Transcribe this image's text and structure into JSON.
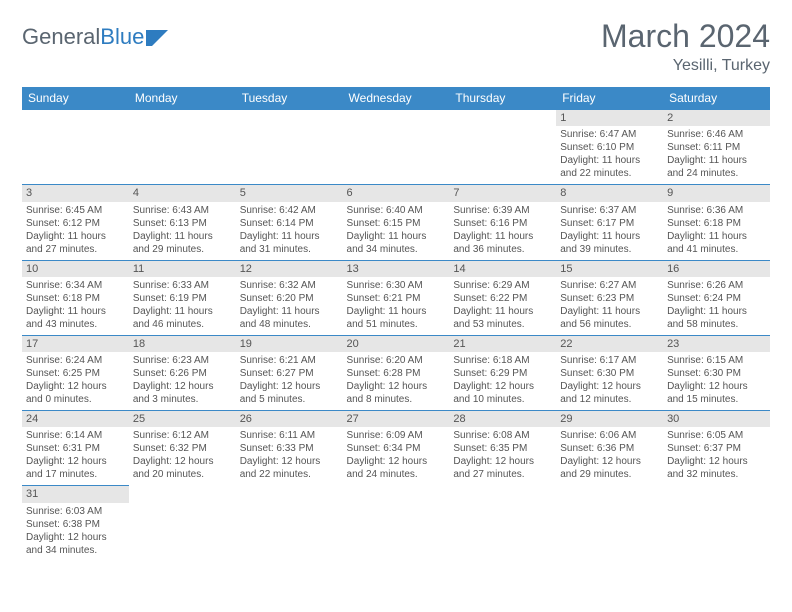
{
  "logo": {
    "text1": "General",
    "text2": "Blue"
  },
  "title": "March 2024",
  "location": "Yesilli, Turkey",
  "weekdays": [
    "Sunday",
    "Monday",
    "Tuesday",
    "Wednesday",
    "Thursday",
    "Friday",
    "Saturday"
  ],
  "colors": {
    "header_bg": "#3b89c7",
    "header_text": "#ffffff",
    "daynum_bg": "#e6e6e6",
    "border": "#3b89c7",
    "title_color": "#5a6570",
    "body_text": "#555555"
  },
  "grid": [
    [
      {
        "day": "",
        "lines": []
      },
      {
        "day": "",
        "lines": []
      },
      {
        "day": "",
        "lines": []
      },
      {
        "day": "",
        "lines": []
      },
      {
        "day": "",
        "lines": []
      },
      {
        "day": "1",
        "lines": [
          "Sunrise: 6:47 AM",
          "Sunset: 6:10 PM",
          "Daylight: 11 hours",
          "and 22 minutes."
        ]
      },
      {
        "day": "2",
        "lines": [
          "Sunrise: 6:46 AM",
          "Sunset: 6:11 PM",
          "Daylight: 11 hours",
          "and 24 minutes."
        ]
      }
    ],
    [
      {
        "day": "3",
        "lines": [
          "Sunrise: 6:45 AM",
          "Sunset: 6:12 PM",
          "Daylight: 11 hours",
          "and 27 minutes."
        ]
      },
      {
        "day": "4",
        "lines": [
          "Sunrise: 6:43 AM",
          "Sunset: 6:13 PM",
          "Daylight: 11 hours",
          "and 29 minutes."
        ]
      },
      {
        "day": "5",
        "lines": [
          "Sunrise: 6:42 AM",
          "Sunset: 6:14 PM",
          "Daylight: 11 hours",
          "and 31 minutes."
        ]
      },
      {
        "day": "6",
        "lines": [
          "Sunrise: 6:40 AM",
          "Sunset: 6:15 PM",
          "Daylight: 11 hours",
          "and 34 minutes."
        ]
      },
      {
        "day": "7",
        "lines": [
          "Sunrise: 6:39 AM",
          "Sunset: 6:16 PM",
          "Daylight: 11 hours",
          "and 36 minutes."
        ]
      },
      {
        "day": "8",
        "lines": [
          "Sunrise: 6:37 AM",
          "Sunset: 6:17 PM",
          "Daylight: 11 hours",
          "and 39 minutes."
        ]
      },
      {
        "day": "9",
        "lines": [
          "Sunrise: 6:36 AM",
          "Sunset: 6:18 PM",
          "Daylight: 11 hours",
          "and 41 minutes."
        ]
      }
    ],
    [
      {
        "day": "10",
        "lines": [
          "Sunrise: 6:34 AM",
          "Sunset: 6:18 PM",
          "Daylight: 11 hours",
          "and 43 minutes."
        ]
      },
      {
        "day": "11",
        "lines": [
          "Sunrise: 6:33 AM",
          "Sunset: 6:19 PM",
          "Daylight: 11 hours",
          "and 46 minutes."
        ]
      },
      {
        "day": "12",
        "lines": [
          "Sunrise: 6:32 AM",
          "Sunset: 6:20 PM",
          "Daylight: 11 hours",
          "and 48 minutes."
        ]
      },
      {
        "day": "13",
        "lines": [
          "Sunrise: 6:30 AM",
          "Sunset: 6:21 PM",
          "Daylight: 11 hours",
          "and 51 minutes."
        ]
      },
      {
        "day": "14",
        "lines": [
          "Sunrise: 6:29 AM",
          "Sunset: 6:22 PM",
          "Daylight: 11 hours",
          "and 53 minutes."
        ]
      },
      {
        "day": "15",
        "lines": [
          "Sunrise: 6:27 AM",
          "Sunset: 6:23 PM",
          "Daylight: 11 hours",
          "and 56 minutes."
        ]
      },
      {
        "day": "16",
        "lines": [
          "Sunrise: 6:26 AM",
          "Sunset: 6:24 PM",
          "Daylight: 11 hours",
          "and 58 minutes."
        ]
      }
    ],
    [
      {
        "day": "17",
        "lines": [
          "Sunrise: 6:24 AM",
          "Sunset: 6:25 PM",
          "Daylight: 12 hours",
          "and 0 minutes."
        ]
      },
      {
        "day": "18",
        "lines": [
          "Sunrise: 6:23 AM",
          "Sunset: 6:26 PM",
          "Daylight: 12 hours",
          "and 3 minutes."
        ]
      },
      {
        "day": "19",
        "lines": [
          "Sunrise: 6:21 AM",
          "Sunset: 6:27 PM",
          "Daylight: 12 hours",
          "and 5 minutes."
        ]
      },
      {
        "day": "20",
        "lines": [
          "Sunrise: 6:20 AM",
          "Sunset: 6:28 PM",
          "Daylight: 12 hours",
          "and 8 minutes."
        ]
      },
      {
        "day": "21",
        "lines": [
          "Sunrise: 6:18 AM",
          "Sunset: 6:29 PM",
          "Daylight: 12 hours",
          "and 10 minutes."
        ]
      },
      {
        "day": "22",
        "lines": [
          "Sunrise: 6:17 AM",
          "Sunset: 6:30 PM",
          "Daylight: 12 hours",
          "and 12 minutes."
        ]
      },
      {
        "day": "23",
        "lines": [
          "Sunrise: 6:15 AM",
          "Sunset: 6:30 PM",
          "Daylight: 12 hours",
          "and 15 minutes."
        ]
      }
    ],
    [
      {
        "day": "24",
        "lines": [
          "Sunrise: 6:14 AM",
          "Sunset: 6:31 PM",
          "Daylight: 12 hours",
          "and 17 minutes."
        ]
      },
      {
        "day": "25",
        "lines": [
          "Sunrise: 6:12 AM",
          "Sunset: 6:32 PM",
          "Daylight: 12 hours",
          "and 20 minutes."
        ]
      },
      {
        "day": "26",
        "lines": [
          "Sunrise: 6:11 AM",
          "Sunset: 6:33 PM",
          "Daylight: 12 hours",
          "and 22 minutes."
        ]
      },
      {
        "day": "27",
        "lines": [
          "Sunrise: 6:09 AM",
          "Sunset: 6:34 PM",
          "Daylight: 12 hours",
          "and 24 minutes."
        ]
      },
      {
        "day": "28",
        "lines": [
          "Sunrise: 6:08 AM",
          "Sunset: 6:35 PM",
          "Daylight: 12 hours",
          "and 27 minutes."
        ]
      },
      {
        "day": "29",
        "lines": [
          "Sunrise: 6:06 AM",
          "Sunset: 6:36 PM",
          "Daylight: 12 hours",
          "and 29 minutes."
        ]
      },
      {
        "day": "30",
        "lines": [
          "Sunrise: 6:05 AM",
          "Sunset: 6:37 PM",
          "Daylight: 12 hours",
          "and 32 minutes."
        ]
      }
    ],
    [
      {
        "day": "31",
        "lines": [
          "Sunrise: 6:03 AM",
          "Sunset: 6:38 PM",
          "Daylight: 12 hours",
          "and 34 minutes."
        ]
      },
      {
        "day": "",
        "lines": []
      },
      {
        "day": "",
        "lines": []
      },
      {
        "day": "",
        "lines": []
      },
      {
        "day": "",
        "lines": []
      },
      {
        "day": "",
        "lines": []
      },
      {
        "day": "",
        "lines": []
      }
    ]
  ]
}
